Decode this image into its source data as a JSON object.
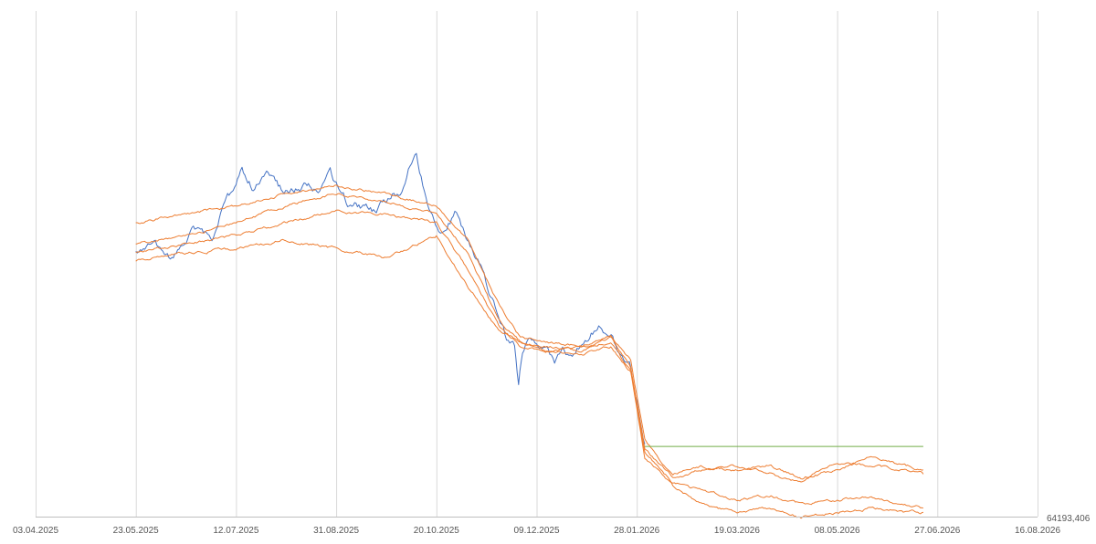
{
  "chart_data": {
    "type": "line",
    "title": "",
    "xlabel": "",
    "ylabel": "",
    "legend": "none",
    "grid": {
      "vertical": true,
      "horizontal": false
    },
    "x_tick_labels": [
      "03.04.2025",
      "23.05.2025",
      "12.07.2025",
      "31.08.2025",
      "20.10.2025",
      "09.12.2025",
      "28.01.2026",
      "19.03.2026",
      "08.05.2026",
      "27.06.2026",
      "16.08.2026"
    ],
    "y_axis_min_label": "64193,406",
    "xlim": [
      "2025-04-03",
      "2026-08-16"
    ],
    "ylim": [
      0,
      100
    ],
    "series": [
      {
        "color": "#4472c4",
        "points": [
          [
            "2025-05-23",
            62
          ],
          [
            "2025-06-01",
            64
          ],
          [
            "2025-06-10",
            60
          ],
          [
            "2025-06-20",
            67
          ],
          [
            "2025-06-30",
            65
          ],
          [
            "2025-07-05",
            72
          ],
          [
            "2025-07-12",
            78
          ],
          [
            "2025-07-15",
            82
          ],
          [
            "2025-07-20",
            78
          ],
          [
            "2025-07-28",
            80
          ],
          [
            "2025-08-05",
            76
          ],
          [
            "2025-08-15",
            78
          ],
          [
            "2025-08-22",
            77
          ],
          [
            "2025-08-28",
            80
          ],
          [
            "2025-09-05",
            74
          ],
          [
            "2025-09-12",
            73
          ],
          [
            "2025-09-20",
            71
          ],
          [
            "2025-09-28",
            76
          ],
          [
            "2025-10-02",
            75
          ],
          [
            "2025-10-06",
            81
          ],
          [
            "2025-10-10",
            84
          ],
          [
            "2025-10-14",
            77
          ],
          [
            "2025-10-18",
            71
          ],
          [
            "2025-10-22",
            68
          ],
          [
            "2025-10-26",
            70
          ],
          [
            "2025-10-30",
            72
          ],
          [
            "2025-11-03",
            67
          ],
          [
            "2025-11-08",
            62
          ],
          [
            "2025-11-12",
            58
          ],
          [
            "2025-11-16",
            52
          ],
          [
            "2025-11-20",
            48
          ],
          [
            "2025-11-24",
            42
          ],
          [
            "2025-11-28",
            40
          ],
          [
            "2025-11-30",
            30
          ],
          [
            "2025-12-02",
            38
          ],
          [
            "2025-12-05",
            42
          ],
          [
            "2025-12-09",
            40
          ],
          [
            "2025-12-14",
            41
          ],
          [
            "2025-12-18",
            37
          ],
          [
            "2025-12-22",
            39
          ],
          [
            "2025-12-26",
            38
          ],
          [
            "2025-12-30",
            40
          ],
          [
            "2026-01-03",
            41
          ],
          [
            "2026-01-06",
            43
          ],
          [
            "2026-01-09",
            45
          ],
          [
            "2026-01-12",
            44
          ],
          [
            "2026-01-16",
            42
          ],
          [
            "2026-01-20",
            38
          ],
          [
            "2026-01-25",
            35
          ],
          [
            "2026-01-28",
            27
          ],
          [
            "2026-02-01",
            17
          ]
        ]
      },
      {
        "color": "#ed7d31",
        "points": [
          [
            "2025-05-23",
            69
          ],
          [
            "2025-06-15",
            71
          ],
          [
            "2025-07-12",
            73
          ],
          [
            "2025-08-05",
            76
          ],
          [
            "2025-08-31",
            78
          ],
          [
            "2025-09-25",
            76
          ],
          [
            "2025-10-20",
            73
          ],
          [
            "2025-11-05",
            65
          ],
          [
            "2025-11-20",
            50
          ],
          [
            "2025-12-01",
            42
          ],
          [
            "2025-12-15",
            41
          ],
          [
            "2026-01-01",
            40
          ],
          [
            "2026-01-15",
            43
          ],
          [
            "2026-01-25",
            37
          ],
          [
            "2026-02-01",
            18
          ],
          [
            "2026-02-15",
            10
          ],
          [
            "2026-03-01",
            12
          ],
          [
            "2026-03-19",
            11
          ],
          [
            "2026-04-05",
            12
          ],
          [
            "2026-04-20",
            9
          ],
          [
            "2026-05-08",
            11
          ],
          [
            "2026-05-25",
            14
          ],
          [
            "2026-06-10",
            12
          ],
          [
            "2026-06-20",
            11
          ]
        ]
      },
      {
        "color": "#ed7d31",
        "points": [
          [
            "2025-05-23",
            64
          ],
          [
            "2025-06-15",
            66
          ],
          [
            "2025-07-12",
            69
          ],
          [
            "2025-08-05",
            73
          ],
          [
            "2025-08-31",
            76
          ],
          [
            "2025-09-25",
            74
          ],
          [
            "2025-10-20",
            71
          ],
          [
            "2025-11-05",
            62
          ],
          [
            "2025-11-20",
            46
          ],
          [
            "2025-12-01",
            41
          ],
          [
            "2025-12-15",
            40
          ],
          [
            "2026-01-01",
            39
          ],
          [
            "2026-01-15",
            42
          ],
          [
            "2026-01-25",
            35
          ],
          [
            "2026-02-01",
            16
          ],
          [
            "2026-02-15",
            9
          ],
          [
            "2026-03-01",
            11
          ],
          [
            "2026-03-19",
            12
          ],
          [
            "2026-04-05",
            10
          ],
          [
            "2026-04-20",
            8
          ],
          [
            "2026-05-08",
            13
          ],
          [
            "2026-05-25",
            12
          ],
          [
            "2026-06-10",
            11
          ],
          [
            "2026-06-20",
            10
          ]
        ]
      },
      {
        "color": "#ed7d31",
        "points": [
          [
            "2025-05-23",
            62
          ],
          [
            "2025-06-15",
            64
          ],
          [
            "2025-07-12",
            66
          ],
          [
            "2025-08-05",
            69
          ],
          [
            "2025-08-31",
            72
          ],
          [
            "2025-09-25",
            71
          ],
          [
            "2025-10-20",
            69
          ],
          [
            "2025-11-05",
            58
          ],
          [
            "2025-11-20",
            45
          ],
          [
            "2025-12-01",
            40
          ],
          [
            "2025-12-15",
            39
          ],
          [
            "2026-01-01",
            40
          ],
          [
            "2026-01-15",
            41
          ],
          [
            "2026-01-25",
            34
          ],
          [
            "2026-02-01",
            15
          ],
          [
            "2026-02-15",
            8
          ],
          [
            "2026-03-01",
            6
          ],
          [
            "2026-03-19",
            4
          ],
          [
            "2026-04-05",
            5
          ],
          [
            "2026-04-20",
            3
          ],
          [
            "2026-05-08",
            4
          ],
          [
            "2026-05-25",
            5
          ],
          [
            "2026-06-10",
            3
          ],
          [
            "2026-06-20",
            2
          ]
        ]
      },
      {
        "color": "#ed7d31",
        "points": [
          [
            "2025-05-23",
            60
          ],
          [
            "2025-06-15",
            62
          ],
          [
            "2025-07-12",
            63
          ],
          [
            "2025-08-05",
            65
          ],
          [
            "2025-08-31",
            63
          ],
          [
            "2025-09-25",
            61
          ],
          [
            "2025-10-20",
            66
          ],
          [
            "2025-11-05",
            54
          ],
          [
            "2025-11-20",
            44
          ],
          [
            "2025-12-01",
            41
          ],
          [
            "2025-12-15",
            39
          ],
          [
            "2026-01-01",
            38
          ],
          [
            "2026-01-15",
            40
          ],
          [
            "2026-01-25",
            34
          ],
          [
            "2026-02-01",
            14
          ],
          [
            "2026-02-15",
            7
          ],
          [
            "2026-03-01",
            3
          ],
          [
            "2026-03-19",
            1
          ],
          [
            "2026-04-05",
            2
          ],
          [
            "2026-04-20",
            0
          ],
          [
            "2026-05-08",
            1
          ],
          [
            "2026-05-25",
            2
          ],
          [
            "2026-06-10",
            1
          ],
          [
            "2026-06-20",
            1
          ]
        ]
      },
      {
        "color": "#70ad47",
        "points": [
          [
            "2026-02-01",
            16.5
          ],
          [
            "2026-06-20",
            16.5
          ]
        ]
      }
    ]
  }
}
